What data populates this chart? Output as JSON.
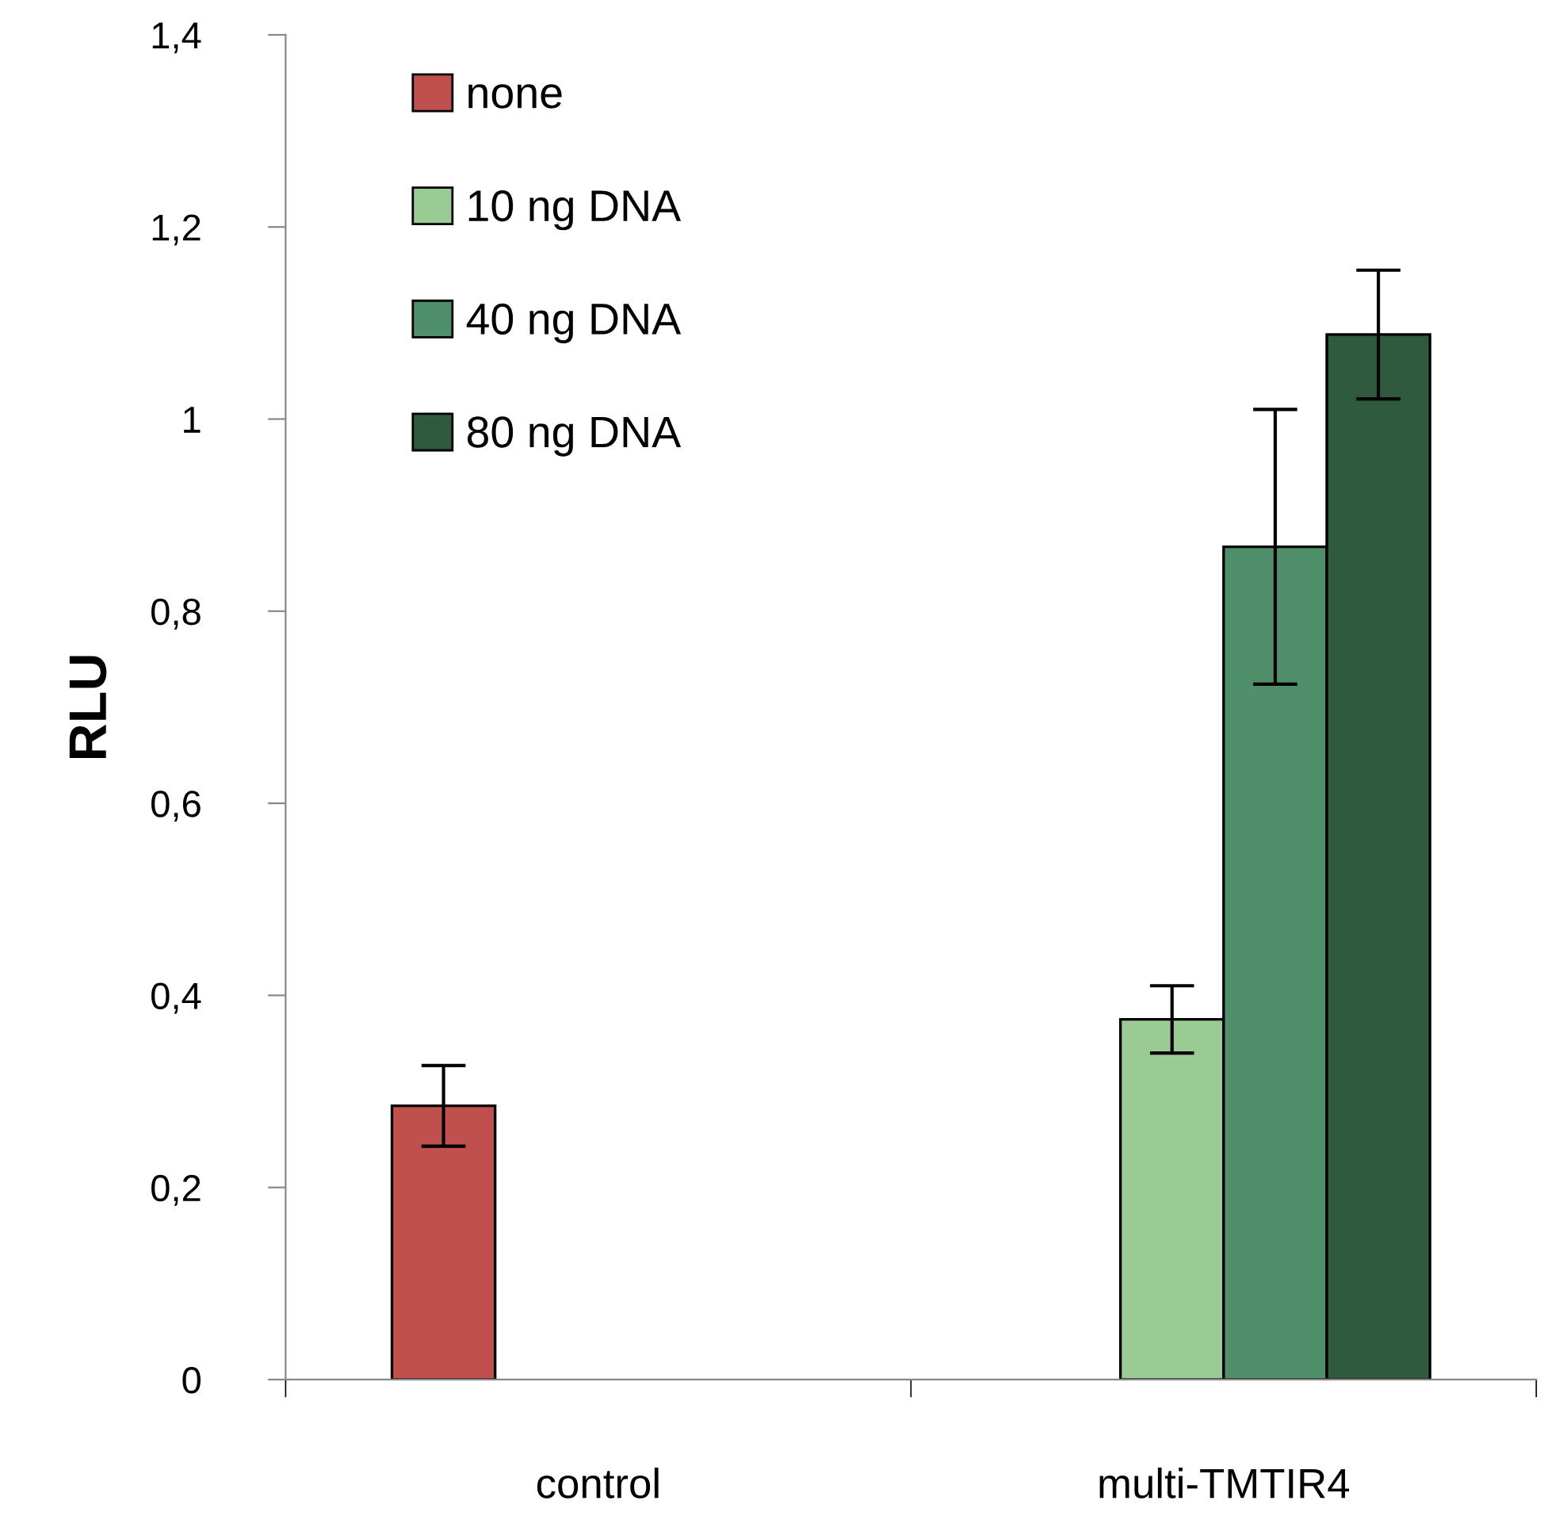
{
  "chart_data": {
    "type": "bar",
    "ylabel": "RLU",
    "categories": [
      "control",
      "multi-TMTIR4"
    ],
    "series": [
      {
        "name": "none",
        "color": "#c0504d",
        "values": [
          0.285,
          null
        ],
        "errors": [
          0.042,
          null
        ]
      },
      {
        "name": "10 ng DNA",
        "color": "#9bcb95",
        "values": [
          null,
          0.375
        ],
        "errors": [
          null,
          0.035
        ]
      },
      {
        "name": "40 ng DNA",
        "color": "#4f8f6a",
        "values": [
          null,
          0.867
        ],
        "errors": [
          null,
          0.143
        ]
      },
      {
        "name": "80 ng DNA",
        "color": "#2f5a3e",
        "values": [
          null,
          1.088
        ],
        "errors": [
          null,
          0.067
        ]
      }
    ],
    "ylim": [
      0,
      1.4
    ],
    "yticks": [
      0,
      {
        "value": 0.2,
        "label": "0,2"
      },
      {
        "value": 0.4,
        "label": "0,4"
      },
      {
        "value": 0.6,
        "label": "0,6"
      },
      {
        "value": 0.8,
        "label": "0,8"
      },
      1,
      {
        "value": 1.2,
        "label": "1,2"
      },
      {
        "value": 1.4,
        "label": "1,4"
      }
    ],
    "grid": false,
    "legend": "top left"
  }
}
